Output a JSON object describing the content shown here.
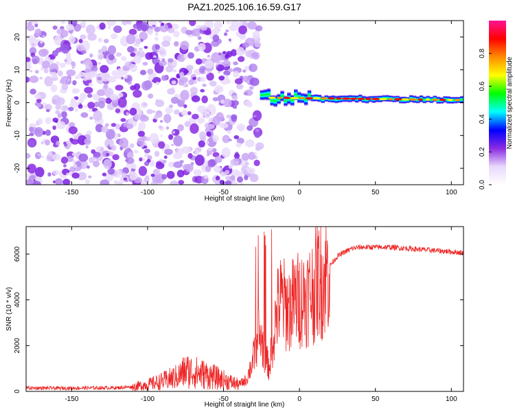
{
  "figure": {
    "title": "PAZ1.2025.106.16.59.G17"
  },
  "chart_data": [
    {
      "type": "heatmap",
      "title": "PAZ1.2025.106.16.59.G17",
      "xlabel": "Height of straight line (km)",
      "ylabel": "Frequency (Hz)",
      "xlim": [
        -180,
        108
      ],
      "ylim": [
        -25,
        25
      ],
      "x_ticks": [
        -150,
        -100,
        -50,
        0,
        50,
        100
      ],
      "y_ticks": [
        -20,
        -10,
        0,
        10,
        20
      ],
      "colorbar": {
        "label": "Normalized spectral amplitude",
        "range": [
          0,
          1
        ],
        "ticks": [
          0.0,
          0.2,
          0.4,
          0.6,
          0.8
        ],
        "colors": [
          "#ffffff",
          "#e8d8fb",
          "#8a2be2",
          "#0000ff",
          "#00ffff",
          "#00ff00",
          "#ffff00",
          "#ff8c00",
          "#ff0000",
          "#ff1493"
        ]
      },
      "regions": [
        {
          "x": [
            -180,
            -26
          ],
          "description": "scattered noise",
          "amplitude_range": [
            0.0,
            0.25
          ]
        },
        {
          "x": [
            -26,
            108
          ],
          "description": "narrow signal line",
          "center_frequency_start": 1.5,
          "center_frequency_end": 0.8,
          "peak_amplitude": 0.95
        }
      ]
    },
    {
      "type": "line",
      "xlabel": "Height of straight line (km)",
      "ylabel": "SNR (10 * v/v)",
      "xlim": [
        -180,
        108
      ],
      "ylim": [
        0,
        7200
      ],
      "x_ticks": [
        -150,
        -100,
        -50,
        0,
        50,
        100
      ],
      "y_ticks": [
        0,
        2000,
        4000,
        6000
      ],
      "color": "#ee2222",
      "series": [
        {
          "x": [
            -180,
            -160,
            -140,
            -120,
            -110,
            -100,
            -90,
            -80,
            -75,
            -70,
            -60,
            -50,
            -40,
            -35,
            -30,
            -27,
            -25,
            -22,
            -20,
            -17,
            -15,
            -12,
            -10,
            -7,
            -5,
            -2,
            0,
            5,
            10,
            12,
            15,
            20,
            25,
            30,
            35,
            40,
            50,
            60,
            70,
            80,
            90,
            100,
            108
          ],
          "y": [
            150,
            140,
            150,
            160,
            200,
            300,
            450,
            650,
            900,
            850,
            700,
            500,
            300,
            500,
            1500,
            2500,
            2200,
            1500,
            1000,
            2500,
            3500,
            4000,
            3800,
            3600,
            3800,
            4000,
            4000,
            4200,
            4500,
            5000,
            4800,
            5500,
            5900,
            6100,
            6250,
            6300,
            6300,
            6300,
            6250,
            6200,
            6150,
            6100,
            6050
          ]
        }
      ]
    }
  ]
}
